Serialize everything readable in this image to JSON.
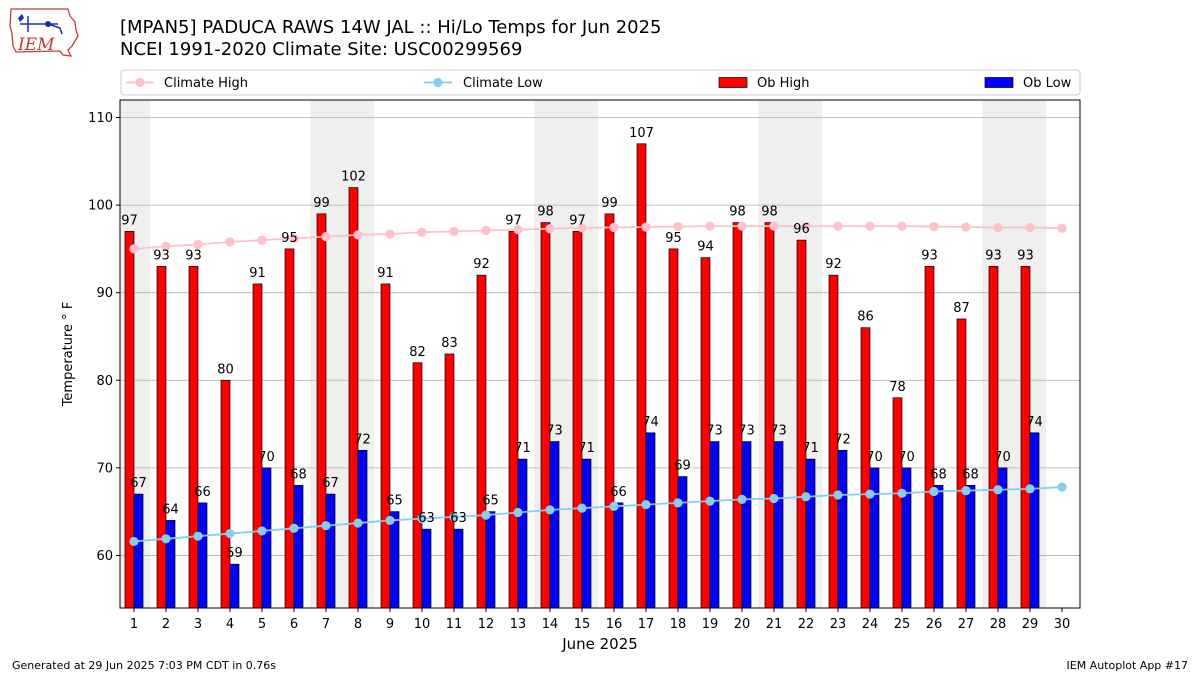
{
  "header": {
    "logo_text": "IEM",
    "title_line1": "[MPAN5] PADUCA RAWS 14W JAL :: Hi/Lo Temps for Jun 2025",
    "title_line2": "NCEI 1991-2020 Climate Site: USC00299569"
  },
  "footer": {
    "generated": "Generated at 29 Jun 2025 7:03 PM CDT in 0.76s",
    "app": "IEM Autoplot App #17"
  },
  "colors": {
    "ob_high": "#ff0000",
    "ob_low": "#0000ff",
    "climate_high": "#ffc0cb",
    "climate_low": "#87ceeb",
    "weekend_shade": "#efefef",
    "grid": "#b0b0b0"
  },
  "chart_data": {
    "type": "bar",
    "xlabel": "June 2025",
    "ylabel": "Temperature ° F",
    "ylim": [
      54,
      112
    ],
    "yticks": [
      60,
      70,
      80,
      90,
      100,
      110
    ],
    "grid": "horizontal",
    "legend": {
      "placement": "top",
      "entries": [
        "Climate High",
        "Climate Low",
        "Ob High",
        "Ob Low"
      ]
    },
    "categories": [
      1,
      2,
      3,
      4,
      5,
      6,
      7,
      8,
      9,
      10,
      11,
      12,
      13,
      14,
      15,
      16,
      17,
      18,
      19,
      20,
      21,
      22,
      23,
      24,
      25,
      26,
      27,
      28,
      29,
      30
    ],
    "shaded_days": [
      1,
      7,
      8,
      14,
      15,
      21,
      22,
      28,
      29
    ],
    "series": [
      {
        "name": "Ob High",
        "kind": "bar",
        "values": [
          97,
          93,
          93,
          80,
          91,
          95,
          99,
          102,
          91,
          82,
          83,
          92,
          97,
          98,
          97,
          99,
          107,
          95,
          94,
          98,
          98,
          96,
          92,
          86,
          78,
          93,
          87,
          93,
          93,
          null
        ]
      },
      {
        "name": "Ob Low",
        "kind": "bar",
        "values": [
          67,
          64,
          66,
          59,
          70,
          68,
          67,
          72,
          65,
          63,
          63,
          65,
          71,
          73,
          71,
          66,
          74,
          69,
          73,
          73,
          73,
          71,
          72,
          70,
          70,
          68,
          68,
          70,
          74,
          null
        ]
      },
      {
        "name": "Climate High",
        "kind": "line",
        "values": [
          95.0,
          95.3,
          95.5,
          95.8,
          96.0,
          96.2,
          96.4,
          96.6,
          96.7,
          96.9,
          97.0,
          97.1,
          97.2,
          97.3,
          97.4,
          97.45,
          97.5,
          97.55,
          97.6,
          97.6,
          97.6,
          97.6,
          97.6,
          97.6,
          97.6,
          97.55,
          97.5,
          97.45,
          97.45,
          97.35
        ]
      },
      {
        "name": "Climate Low",
        "kind": "line",
        "values": [
          61.6,
          61.9,
          62.2,
          62.5,
          62.8,
          63.1,
          63.4,
          63.7,
          64.0,
          64.2,
          64.4,
          64.6,
          64.9,
          65.2,
          65.4,
          65.6,
          65.8,
          66.0,
          66.2,
          66.4,
          66.5,
          66.7,
          66.9,
          67.0,
          67.1,
          67.3,
          67.4,
          67.5,
          67.6,
          67.8
        ]
      }
    ]
  }
}
